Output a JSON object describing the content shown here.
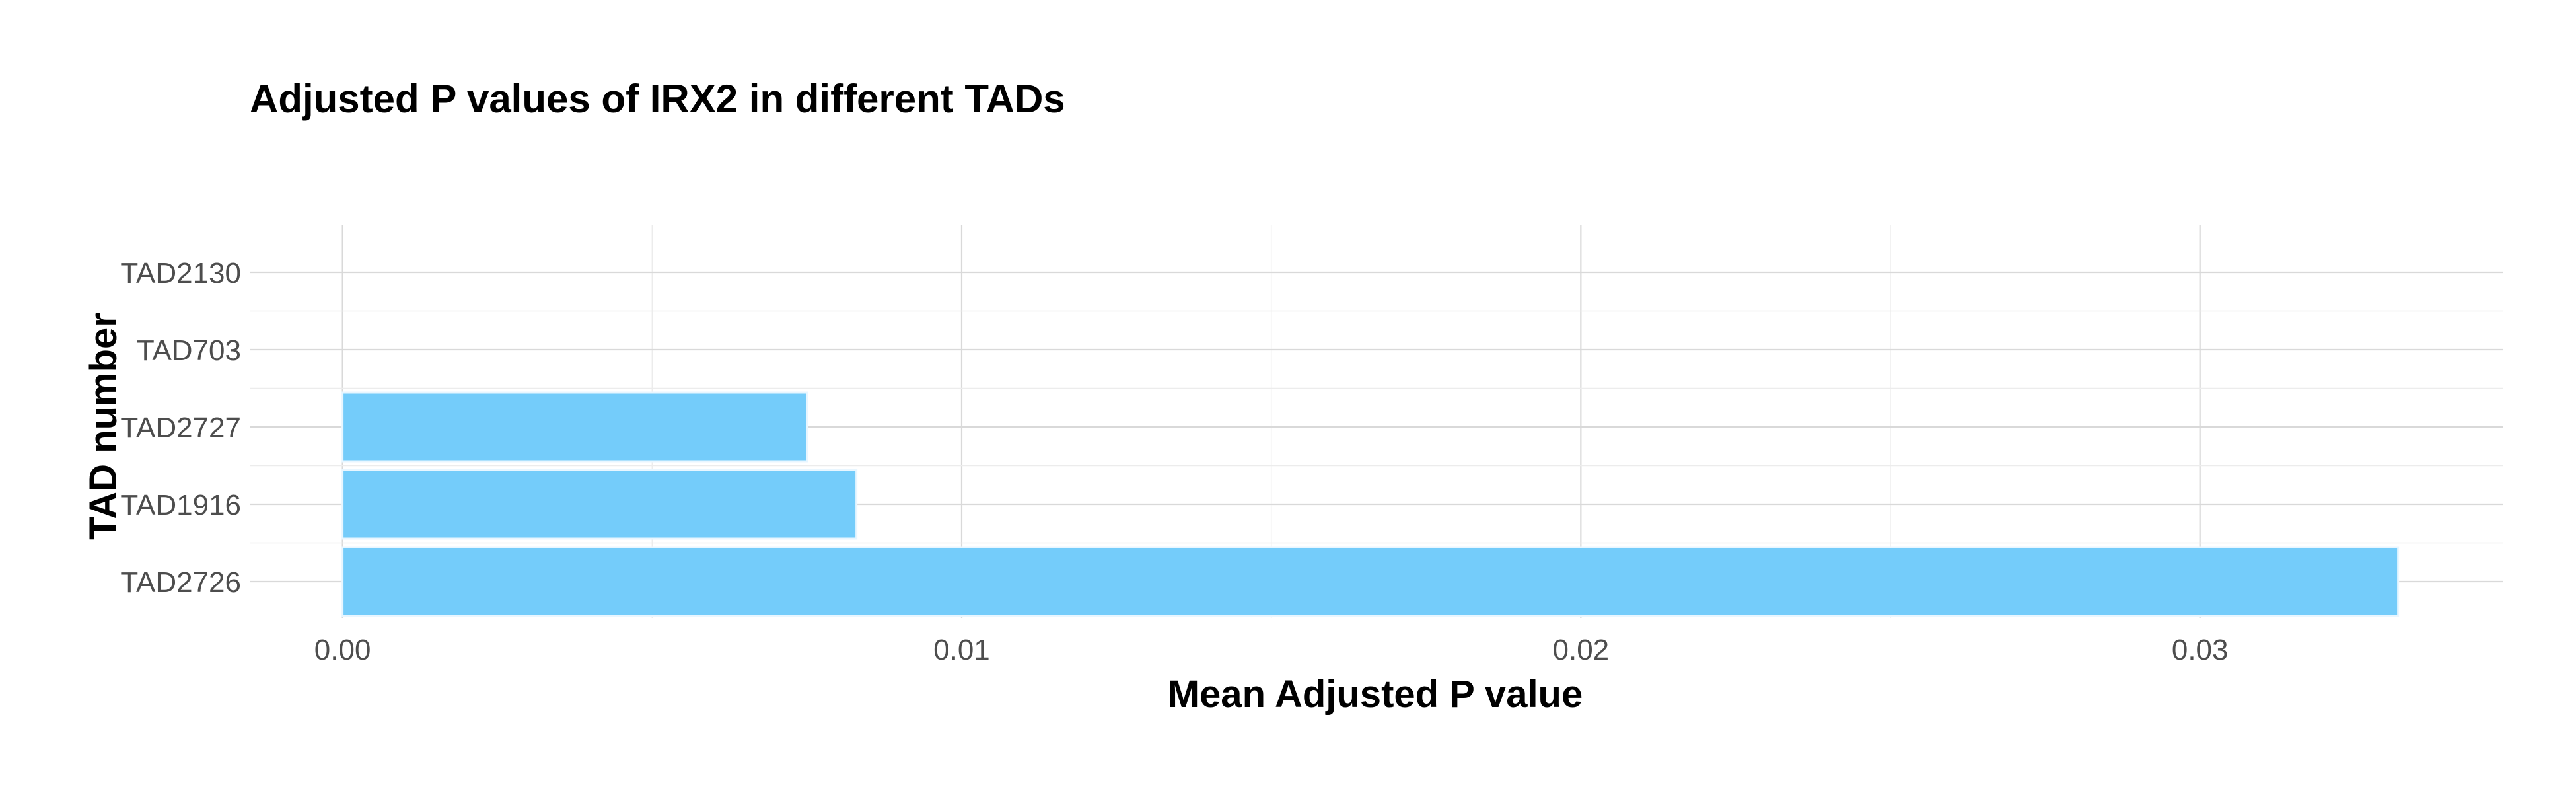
{
  "chart_data": {
    "type": "bar",
    "orientation": "horizontal",
    "title": "Adjusted P values of IRX2 in different TADs",
    "xlabel": "Mean Adjusted P value",
    "ylabel": "TAD number",
    "categories": [
      "TAD2726",
      "TAD1916",
      "TAD2727",
      "TAD703",
      "TAD2130"
    ],
    "values": [
      0.0332,
      0.0083,
      0.0075,
      0.0,
      0.0
    ],
    "xlim": [
      -0.0015,
      0.0349
    ],
    "x_ticks": [
      0.0,
      0.01,
      0.02,
      0.03
    ],
    "x_tick_labels": [
      "0.00",
      "0.01",
      "0.02",
      "0.03"
    ],
    "grid": true,
    "legend": "none",
    "colors": {
      "bar": "#74CCFA",
      "bar_outline": "#e8f6ff"
    }
  }
}
